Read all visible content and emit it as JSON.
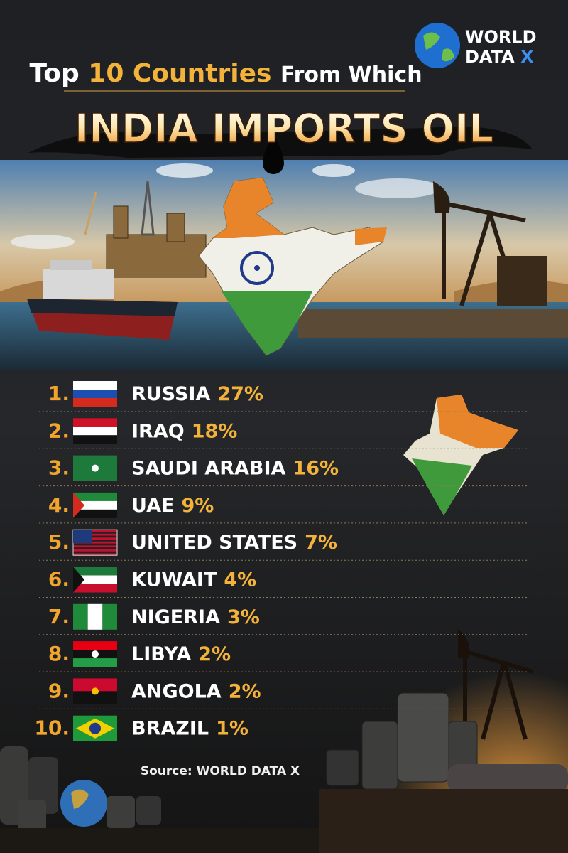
{
  "header": {
    "logo_line1": "WORLD",
    "logo_line2": "DATA",
    "logo_line2_accent": "X",
    "title_prefix": "Top",
    "title_highlight": "10 Countries",
    "title_suffix": "From Which",
    "headline": "INDIA IMPORTS OIL"
  },
  "list": [
    {
      "rank": "1.",
      "country": "RUSSIA",
      "share": "27%"
    },
    {
      "rank": "2.",
      "country": "IRAQ",
      "share": "18%"
    },
    {
      "rank": "3.",
      "country": "SAUDI ARABIA",
      "share": "16%"
    },
    {
      "rank": "4.",
      "country": "UAE",
      "share": "9%"
    },
    {
      "rank": "5.",
      "country": "UNITED STATES",
      "share": "7%"
    },
    {
      "rank": "6.",
      "country": "KUWAIT",
      "share": "4%"
    },
    {
      "rank": "7.",
      "country": "NIGERIA",
      "share": "3%"
    },
    {
      "rank": "8.",
      "country": "LIBYA",
      "share": "2%"
    },
    {
      "rank": "9.",
      "country": "ANGOLA",
      "share": "2%"
    },
    {
      "rank": "10.",
      "country": "BRAZIL",
      "share": "1%"
    }
  ],
  "footer": {
    "source": "Source: WORLD DATA X"
  }
}
